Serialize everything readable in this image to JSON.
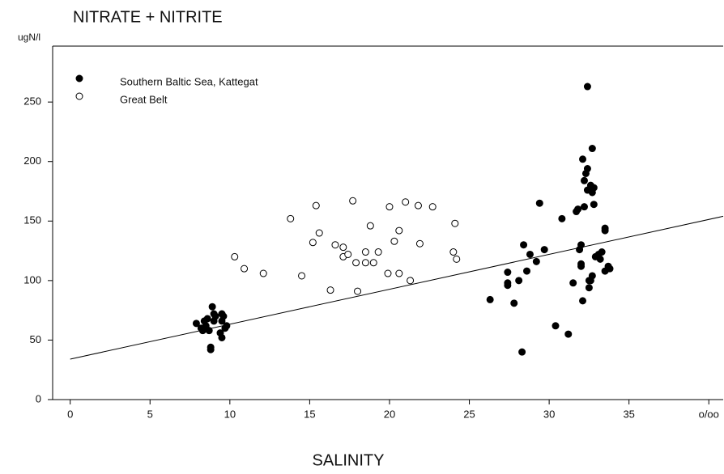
{
  "chart_data": {
    "type": "scatter",
    "title": "NITRATE + NITRITE",
    "x_label": "SALINITY",
    "y_label": "ugN/l",
    "xlim": [
      -1.1,
      40.9
    ],
    "ylim": [
      0,
      297
    ],
    "xticks": [
      0,
      5,
      10,
      15,
      20,
      25,
      30,
      35,
      {
        "value": 40,
        "label": "o/oo"
      }
    ],
    "yticks": [
      0,
      50,
      100,
      150,
      200,
      250
    ],
    "legend": "top-left",
    "series": [
      {
        "name": "Southern Baltic Sea, Kattegat",
        "color": "#000000",
        "marker": "filled",
        "x": [
          7.9,
          8.2,
          8.3,
          8.4,
          8.5,
          8.6,
          8.7,
          8.8,
          8.8,
          8.9,
          9.0,
          9.0,
          9.1,
          9.4,
          9.5,
          9.5,
          9.6,
          9.7,
          9.8,
          9.5,
          26.3,
          27.4,
          27.4,
          27.4,
          27.8,
          28.1,
          28.3,
          28.4,
          28.6,
          28.8,
          29.2,
          29.4,
          29.7,
          30.4,
          30.8,
          31.2,
          31.5,
          31.7,
          31.8,
          31.9,
          32.0,
          32.0,
          32.0,
          32.1,
          32.1,
          32.2,
          32.2,
          32.3,
          32.4,
          32.4,
          32.4,
          32.5,
          32.5,
          32.6,
          32.6,
          32.7,
          32.7,
          32.7,
          32.8,
          32.8,
          32.9,
          33.1,
          33.2,
          33.3,
          33.5,
          33.5,
          33.5,
          33.7,
          33.8
        ],
        "y": [
          64,
          60,
          58,
          66,
          62,
          68,
          58,
          44,
          42,
          78,
          72,
          66,
          70,
          56,
          52,
          72,
          70,
          60,
          62,
          66,
          84,
          107,
          98,
          96,
          81,
          100,
          40,
          130,
          108,
          122,
          116,
          165,
          126,
          62,
          152,
          55,
          98,
          158,
          160,
          126,
          130,
          114,
          112,
          83,
          202,
          162,
          184,
          190,
          263,
          194,
          176,
          100,
          94,
          180,
          100,
          211,
          174,
          104,
          178,
          164,
          120,
          122,
          118,
          124,
          144,
          142,
          108,
          112,
          110
        ]
      },
      {
        "name": "Great Belt",
        "color": "#000000",
        "marker": "open",
        "x": [
          10.3,
          10.9,
          12.1,
          13.8,
          14.5,
          15.2,
          15.4,
          15.6,
          16.3,
          16.6,
          17.1,
          17.1,
          17.4,
          17.7,
          17.9,
          18.0,
          18.5,
          18.5,
          18.8,
          19.0,
          19.3,
          19.9,
          20.0,
          20.3,
          20.6,
          20.6,
          21.0,
          21.3,
          21.8,
          21.9,
          22.7,
          24.0,
          24.1,
          24.2
        ],
        "y": [
          120,
          110,
          106,
          152,
          104,
          132,
          163,
          140,
          92,
          130,
          120,
          128,
          122,
          167,
          115,
          91,
          115,
          124,
          146,
          115,
          124,
          106,
          162,
          133,
          106,
          142,
          166,
          100,
          163,
          131,
          162,
          124,
          148,
          118
        ]
      }
    ],
    "trend_line": {
      "x": [
        0,
        40.9
      ],
      "y": [
        34,
        154
      ]
    }
  }
}
